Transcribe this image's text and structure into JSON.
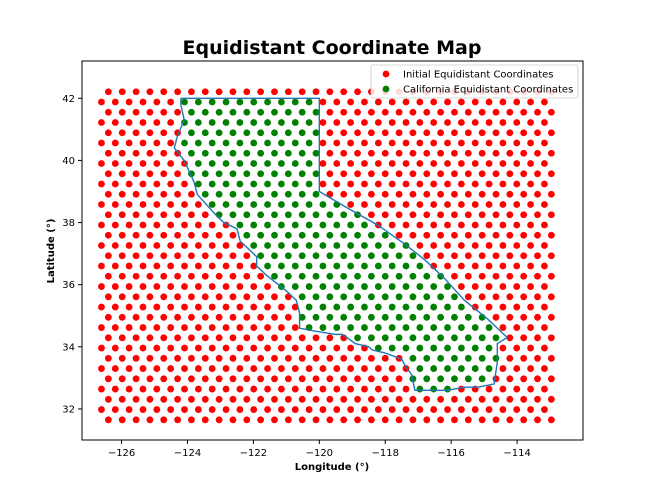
{
  "chart_data": {
    "type": "scatter",
    "title": "Equidistant Coordinate Map",
    "xlabel": "Longitude (°)",
    "ylabel": "Latitude (°)",
    "xlim": [
      -127.2,
      -112.0
    ],
    "ylim": [
      31.0,
      43.2
    ],
    "xticks": [
      -126,
      -124,
      -122,
      -120,
      -118,
      -116,
      -114
    ],
    "xtick_labels": [
      "−126",
      "−124",
      "−122",
      "−120",
      "−118",
      "−116",
      "−114"
    ],
    "yticks": [
      32,
      34,
      36,
      38,
      40,
      42
    ],
    "ytick_labels": [
      "32",
      "34",
      "36",
      "38",
      "40",
      "42"
    ],
    "grid": false,
    "legend_position": "top-right",
    "grid_spacing": {
      "x_step": 0.42,
      "y_step": 0.33,
      "x_range": [
        -126.4,
        -112.9
      ],
      "y_range": [
        31.65,
        42.5
      ]
    },
    "series": [
      {
        "name": "Initial Equidistant Coordinates",
        "color": "#ff0000",
        "marker": "circle"
      },
      {
        "name": "California Equidistant Coordinates",
        "color": "#008000",
        "marker": "circle"
      }
    ],
    "boundary": {
      "color": "#1f77b4",
      "lon": [
        -124.2,
        -120.0,
        -120.0,
        -119.2,
        -118.2,
        -117.4,
        -116.8,
        -116.2,
        -115.6,
        -114.9,
        -114.5,
        -114.3,
        -114.6,
        -114.6,
        -114.7,
        -115.2,
        -115.6,
        -116.1,
        -117.1,
        -117.2,
        -117.4,
        -117.5,
        -118.0,
        -118.4,
        -118.5,
        -118.9,
        -119.3,
        -119.5,
        -120.1,
        -120.6,
        -120.6,
        -120.7,
        -121.0,
        -121.6,
        -121.9,
        -121.9,
        -122.4,
        -122.5,
        -122.9,
        -123.1,
        -123.7,
        -123.8,
        -124.1,
        -124.4,
        -124.3,
        -124.1,
        -124.2,
        -124.2
      ],
      "lat": [
        42.0,
        42.0,
        39.0,
        38.5,
        37.9,
        37.3,
        36.8,
        36.2,
        35.5,
        34.9,
        34.5,
        34.3,
        34.1,
        33.5,
        32.8,
        32.7,
        32.7,
        32.6,
        32.6,
        33.1,
        33.4,
        33.6,
        33.8,
        33.9,
        34.0,
        34.1,
        34.4,
        34.4,
        34.5,
        34.6,
        35.1,
        35.5,
        35.8,
        36.3,
        36.6,
        36.9,
        37.4,
        37.8,
        38.0,
        38.2,
        38.9,
        39.3,
        40.0,
        40.4,
        40.8,
        41.3,
        41.8,
        42.0
      ]
    }
  }
}
